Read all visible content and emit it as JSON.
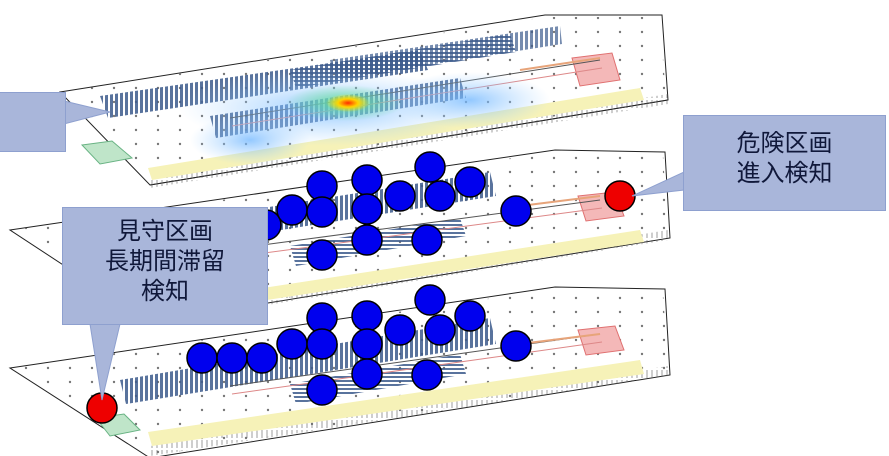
{
  "callouts": {
    "danger_line1": "危険区画",
    "danger_line2": "進入検知",
    "watch_line1": "見守区画",
    "watch_line2": "長期間滞留",
    "watch_line3": "検知"
  },
  "colors": {
    "person_marker": "#0000ee",
    "alert_marker": "#ee0000",
    "callout_bg": "#a9b6da",
    "shelf_blue": "#3c5a8c",
    "yellow_zone": "#f6f2b8",
    "red_zone": "#f4b8b8",
    "green_zone": "#bfe5c9"
  }
}
